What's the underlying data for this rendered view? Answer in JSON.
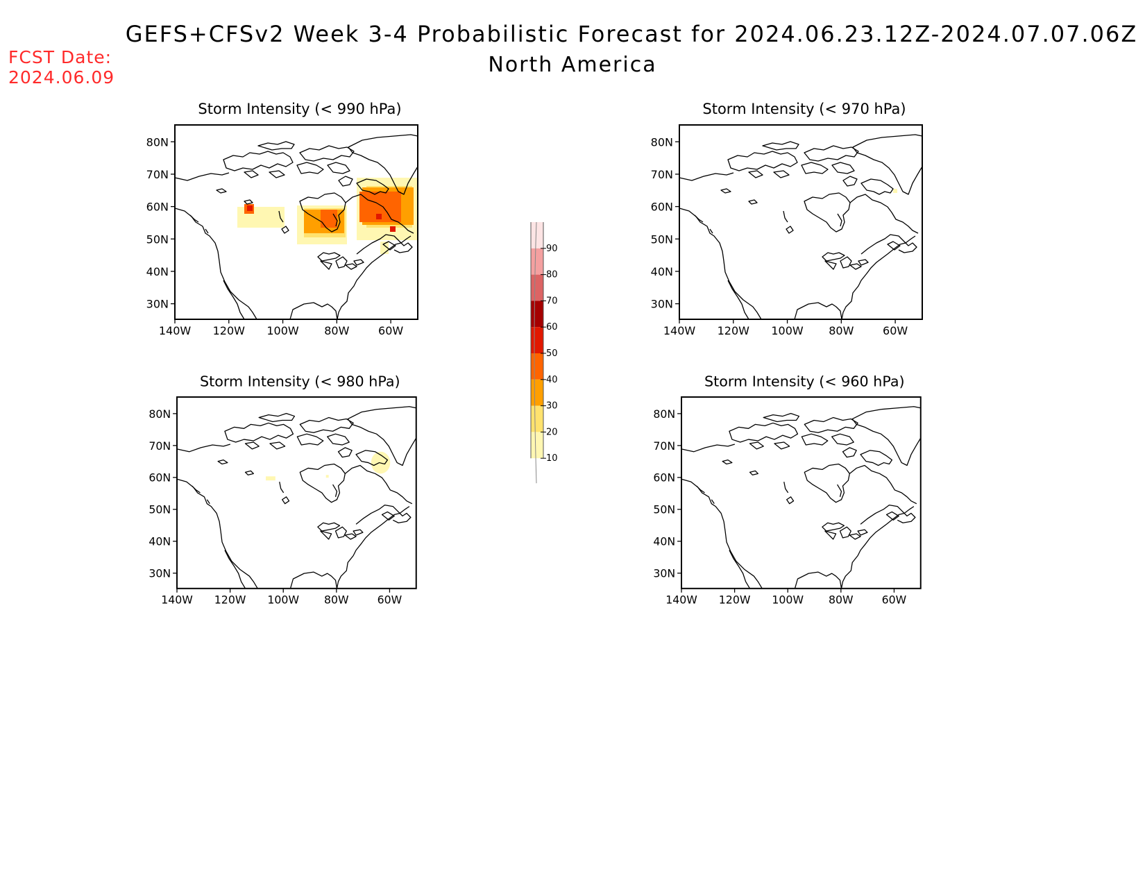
{
  "header": {
    "title": "GEFS+CFSv2 Week 3-4 Probabilistic Forecast for 2024.06.23.12Z-2024.07.07.06Z",
    "subtitle": "North America",
    "fcst_label": "FCST Date:",
    "fcst_date": "2024.06.09",
    "fcst_color": "#ff2a2a"
  },
  "axes": {
    "lat_ticks": [
      "80N",
      "70N",
      "60N",
      "50N",
      "40N",
      "30N"
    ],
    "lon_ticks": [
      "140W",
      "120W",
      "100W",
      "80W",
      "60W"
    ]
  },
  "panels": [
    {
      "id": "p990",
      "title": "Storm Intensity (< 990 hPa)"
    },
    {
      "id": "p970",
      "title": "Storm Intensity (< 970 hPa)"
    },
    {
      "id": "p980",
      "title": "Storm Intensity (< 980 hPa)"
    },
    {
      "id": "p960",
      "title": "Storm Intensity (< 960 hPa)"
    }
  ],
  "colorbar": {
    "levels": [
      "10",
      "20",
      "30",
      "40",
      "50",
      "60",
      "70",
      "80",
      "90"
    ],
    "colors": [
      "#fff7b2",
      "#ffe26e",
      "#ff9f00",
      "#ff6400",
      "#e11800",
      "#a50000",
      "#dc6464",
      "#f4a0a0",
      "#fde4e4"
    ]
  }
}
